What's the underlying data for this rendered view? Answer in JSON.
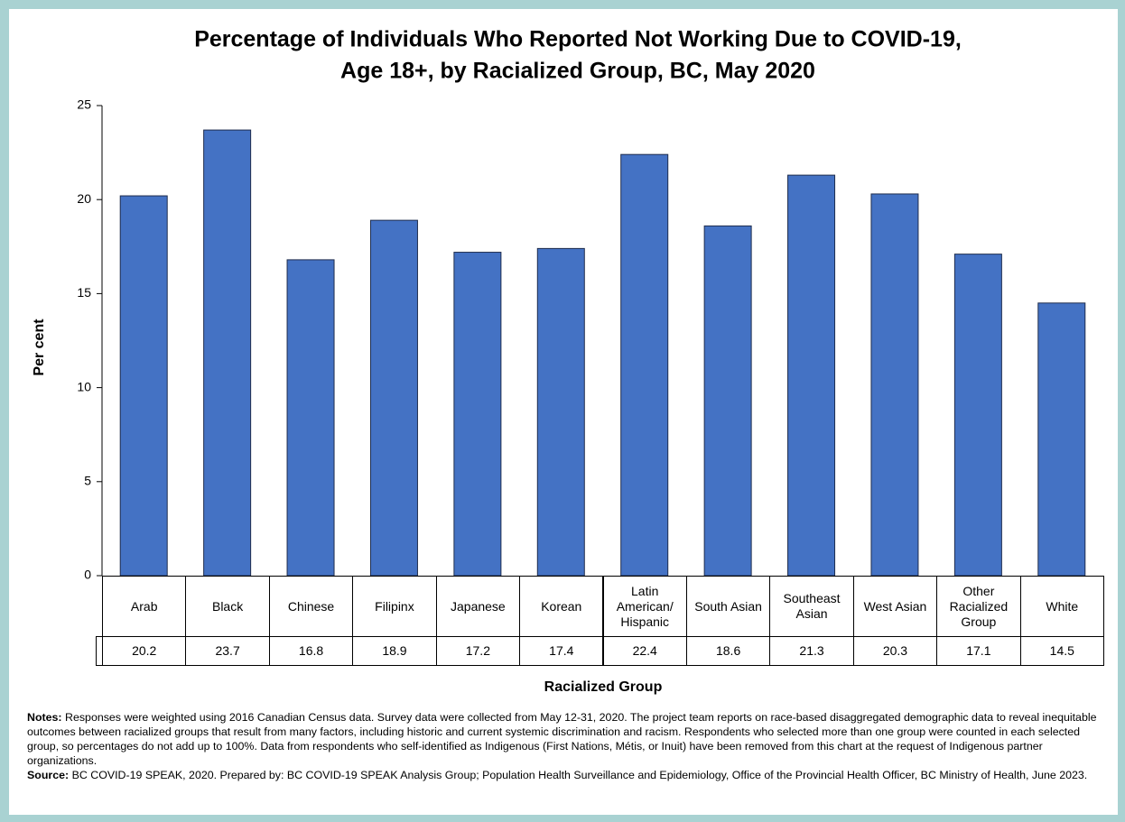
{
  "chart_data": {
    "type": "bar",
    "title": [
      "Percentage of Individuals Who Reported Not Working Due to COVID-19,",
      "Age 18+, by Racialized Group, BC, May 2020"
    ],
    "y_label": "Per cent",
    "x_label": "Racialized Group",
    "categories": [
      "Arab",
      "Black",
      "Chinese",
      "Filipinx",
      "Japanese",
      "Korean",
      "Latin American/ Hispanic",
      "South Asian",
      "Southeast Asian",
      "West Asian",
      "Other Racialized Group",
      "White"
    ],
    "values": [
      20.2,
      23.7,
      16.8,
      18.9,
      17.2,
      17.4,
      22.4,
      18.6,
      21.3,
      20.3,
      17.1,
      14.5
    ],
    "color": "#4472c4",
    "ylim": [
      0,
      25
    ],
    "yticks": [
      0,
      5,
      10,
      15,
      20,
      25
    ],
    "grid": false,
    "notes_label": "Notes:",
    "notes": "Responses were weighted using 2016 Canadian Census data. Survey data were collected from May 12-31, 2020. The project team reports on race-based disaggregated demographic data to reveal inequitable outcomes between racialized groups that result from many factors, including historic and current systemic discrimination and racism. Respondents who selected more than one group were counted in each selected group, so percentages do not add up to 100%. Data from respondents who self-identified as Indigenous (First Nations, Métis, or Inuit) have been removed from this chart at the request of Indigenous partner organizations.",
    "source_label": "Source:",
    "source": "BC COVID-19 SPEAK, 2020. Prepared by: BC COVID-19 SPEAK Analysis Group; Population Health Surveillance and Epidemiology, Office of the Provincial Health Officer, BC Ministry of Health, June 2023."
  }
}
